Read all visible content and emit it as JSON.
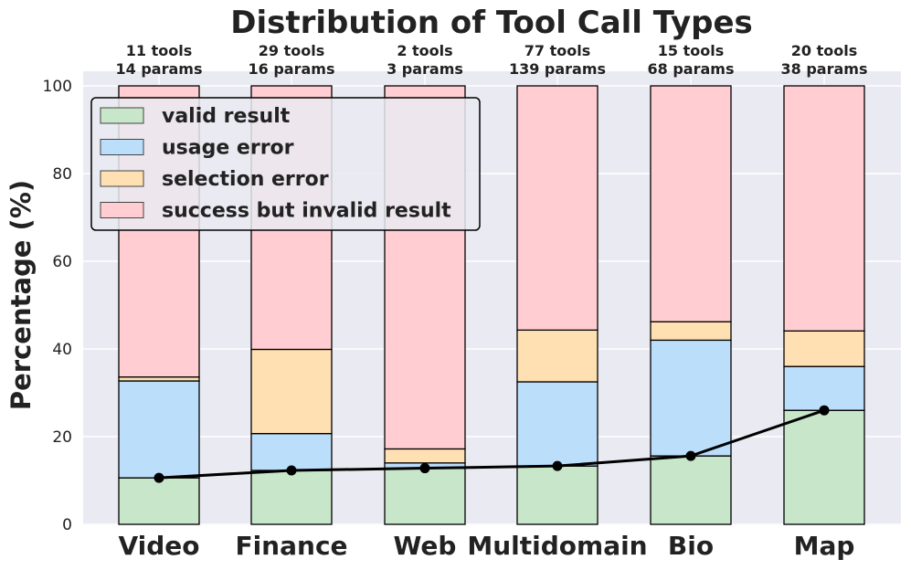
{
  "chart_data": {
    "type": "bar",
    "stacked": true,
    "title": "Distribution of Tool Call Types",
    "xlabel": "",
    "ylabel": "Percentage (%)",
    "ylim": [
      0,
      100
    ],
    "yticks": [
      0,
      20,
      40,
      60,
      80,
      100
    ],
    "grid": true,
    "legend_position": "upper-left",
    "categories": [
      "Video",
      "Finance",
      "Web",
      "Multidomain",
      "Bio",
      "Map"
    ],
    "annotations": [
      {
        "tools": "11 tools",
        "params": "14 params"
      },
      {
        "tools": "29 tools",
        "params": "16 params"
      },
      {
        "tools": "2 tools",
        "params": "3 params"
      },
      {
        "tools": "77 tools",
        "params": "139 params"
      },
      {
        "tools": "15 tools",
        "params": "68 params"
      },
      {
        "tools": "20 tools",
        "params": "38 params"
      }
    ],
    "series": [
      {
        "name": "valid result",
        "color": "#c8e6c9",
        "values": [
          10.6,
          12.3,
          12.8,
          13.3,
          15.6,
          26.0
        ]
      },
      {
        "name": "usage error",
        "color": "#bbdefb",
        "values": [
          22.1,
          8.4,
          1.2,
          19.2,
          26.4,
          10.0
        ]
      },
      {
        "name": "selection error",
        "color": "#ffe0b2",
        "values": [
          0.9,
          19.2,
          3.2,
          11.8,
          4.2,
          8.1
        ]
      },
      {
        "name": "success but invalid result",
        "color": "#ffcdd2",
        "values": [
          66.4,
          60.1,
          82.8,
          55.7,
          53.8,
          55.9
        ]
      }
    ],
    "line": {
      "color": "#000000",
      "values": [
        10.6,
        12.3,
        12.8,
        13.3,
        15.6,
        26.0
      ]
    },
    "background_color": "#eaeaf2",
    "grid_color": "#ffffff"
  }
}
